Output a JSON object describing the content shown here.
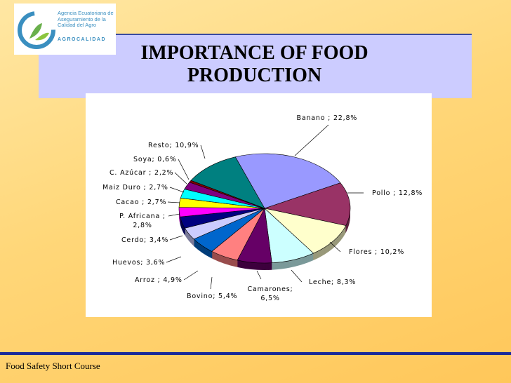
{
  "logo": {
    "agency": "Agencia Ecuatoriana de Aseguramiento de la Calidad del Agro",
    "brand": "AGROCALIDAD"
  },
  "footer": "Food Safety Short Course",
  "chart_data": {
    "type": "pie",
    "title": "IMPORTANCE OF FOOD PRODUCTION",
    "values": [
      22.8,
      12.8,
      10.2,
      8.3,
      6.5,
      5.4,
      4.9,
      3.6,
      3.4,
      2.8,
      2.7,
      2.7,
      2.2,
      0.6,
      10.9
    ],
    "value_labels": [
      "Banano ; 22,8%",
      "Pollo ; 12,8%",
      "Flores ; 10,2%",
      "Leche; 8,3%",
      "Camarones; 6,5%",
      "Bovino; 5,4%",
      "Arroz ; 4,9%",
      "Huevos; 3,6%",
      "Cerdo; 3,4%",
      "P. Africana ; 2,8%",
      "Cacao ; 2,7%",
      "Maiz Duro ; 2,7%",
      "C. Azúcar ; 2,2%",
      "Soya; 0,6%",
      "Resto; 10,9%"
    ],
    "colors": [
      "#9999ff",
      "#993366",
      "#ffffcc",
      "#ccffff",
      "#660066",
      "#ff8080",
      "#0066cc",
      "#ccccff",
      "#000080",
      "#ff00ff",
      "#ffff00",
      "#00ffff",
      "#800080",
      "#800000",
      "#008080"
    ]
  }
}
